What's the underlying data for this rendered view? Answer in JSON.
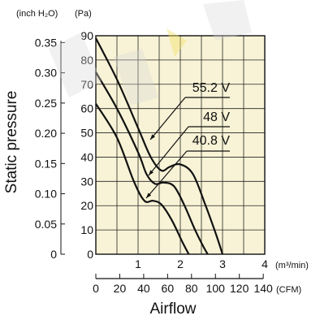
{
  "chart_data": {
    "type": "line",
    "left_axis_unit": "(inch H₂O)",
    "right_axis_unit": "(Pa)",
    "ylabel": "Static pressure",
    "xlabel": "Airflow",
    "x_unit_primary": "(m³/min)",
    "x_unit_secondary": "(CFM)",
    "x_primary_ticks": [
      "0",
      "1",
      "2",
      "3",
      "4"
    ],
    "x_secondary_ticks": [
      "0",
      "20",
      "40",
      "60",
      "80",
      "100",
      "120",
      "140"
    ],
    "y_pa_ticks": [
      "0",
      "10",
      "20",
      "30",
      "40",
      "50",
      "60",
      "70",
      "80",
      "90"
    ],
    "y_inch_ticks": [
      "0",
      "0.05",
      "0.10",
      "0.15",
      "0.20",
      "0.25",
      "0.30",
      "0.35"
    ],
    "xlim": [
      0,
      4
    ],
    "ylim": [
      0,
      90
    ],
    "grid": true,
    "series": [
      {
        "name": "55.2 V",
        "points": [
          [
            0,
            89
          ],
          [
            0.5,
            72
          ],
          [
            1.0,
            52
          ],
          [
            1.3,
            40
          ],
          [
            1.55,
            34.5
          ],
          [
            1.75,
            36
          ],
          [
            2.0,
            37
          ],
          [
            2.3,
            33
          ],
          [
            2.6,
            20
          ],
          [
            2.85,
            8
          ],
          [
            3.0,
            0
          ]
        ]
      },
      {
        "name": "48 V",
        "points": [
          [
            0,
            75
          ],
          [
            0.5,
            60
          ],
          [
            1.0,
            42
          ],
          [
            1.2,
            33
          ],
          [
            1.4,
            29
          ],
          [
            1.6,
            29.5
          ],
          [
            1.85,
            28
          ],
          [
            2.1,
            20
          ],
          [
            2.35,
            10
          ],
          [
            2.55,
            3
          ],
          [
            2.65,
            0
          ]
        ]
      },
      {
        "name": "40.8 V",
        "points": [
          [
            0,
            62
          ],
          [
            0.5,
            48
          ],
          [
            0.9,
            30
          ],
          [
            1.15,
            22
          ],
          [
            1.35,
            22
          ],
          [
            1.55,
            20.5
          ],
          [
            1.8,
            14
          ],
          [
            2.05,
            5
          ],
          [
            2.2,
            0
          ]
        ]
      }
    ]
  }
}
